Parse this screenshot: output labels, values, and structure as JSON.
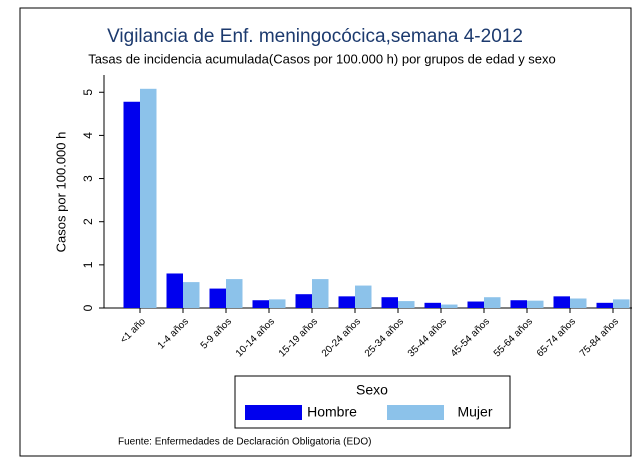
{
  "chart_data": {
    "type": "bar",
    "title": "Vigilancia de Enf. meningocócica,semana 4-2012",
    "subtitle": "Tasas de incidencia acumulada(Casos por 100.000 h) por grupos de edad y sexo",
    "y_label": "Casos por 100.000 h",
    "categories": [
      "<1 año",
      "1-4 años",
      "5-9 años",
      "10-14 años",
      "15-19 años",
      "20-24 años",
      "25-34 años",
      "35-44 años",
      "45-54 años",
      "55-64 años",
      "65-74 años",
      "75-84 años"
    ],
    "series": [
      {
        "name": "Hombre",
        "color": "#0000ee",
        "values": [
          4.78,
          0.8,
          0.45,
          0.18,
          0.32,
          0.27,
          0.25,
          0.12,
          0.15,
          0.18,
          0.27,
          0.12
        ]
      },
      {
        "name": "Mujer",
        "color": "#8cc2ea",
        "values": [
          5.08,
          0.6,
          0.67,
          0.2,
          0.67,
          0.52,
          0.16,
          0.08,
          0.25,
          0.17,
          0.22,
          0.2
        ]
      }
    ],
    "ylim": [
      0,
      5.4
    ],
    "yticks": [
      0,
      1,
      2,
      3,
      4,
      5
    ],
    "legend_title": "Sexo",
    "source": "Fuente: Enfermedades de Declaración Obligatoria (EDO)"
  }
}
